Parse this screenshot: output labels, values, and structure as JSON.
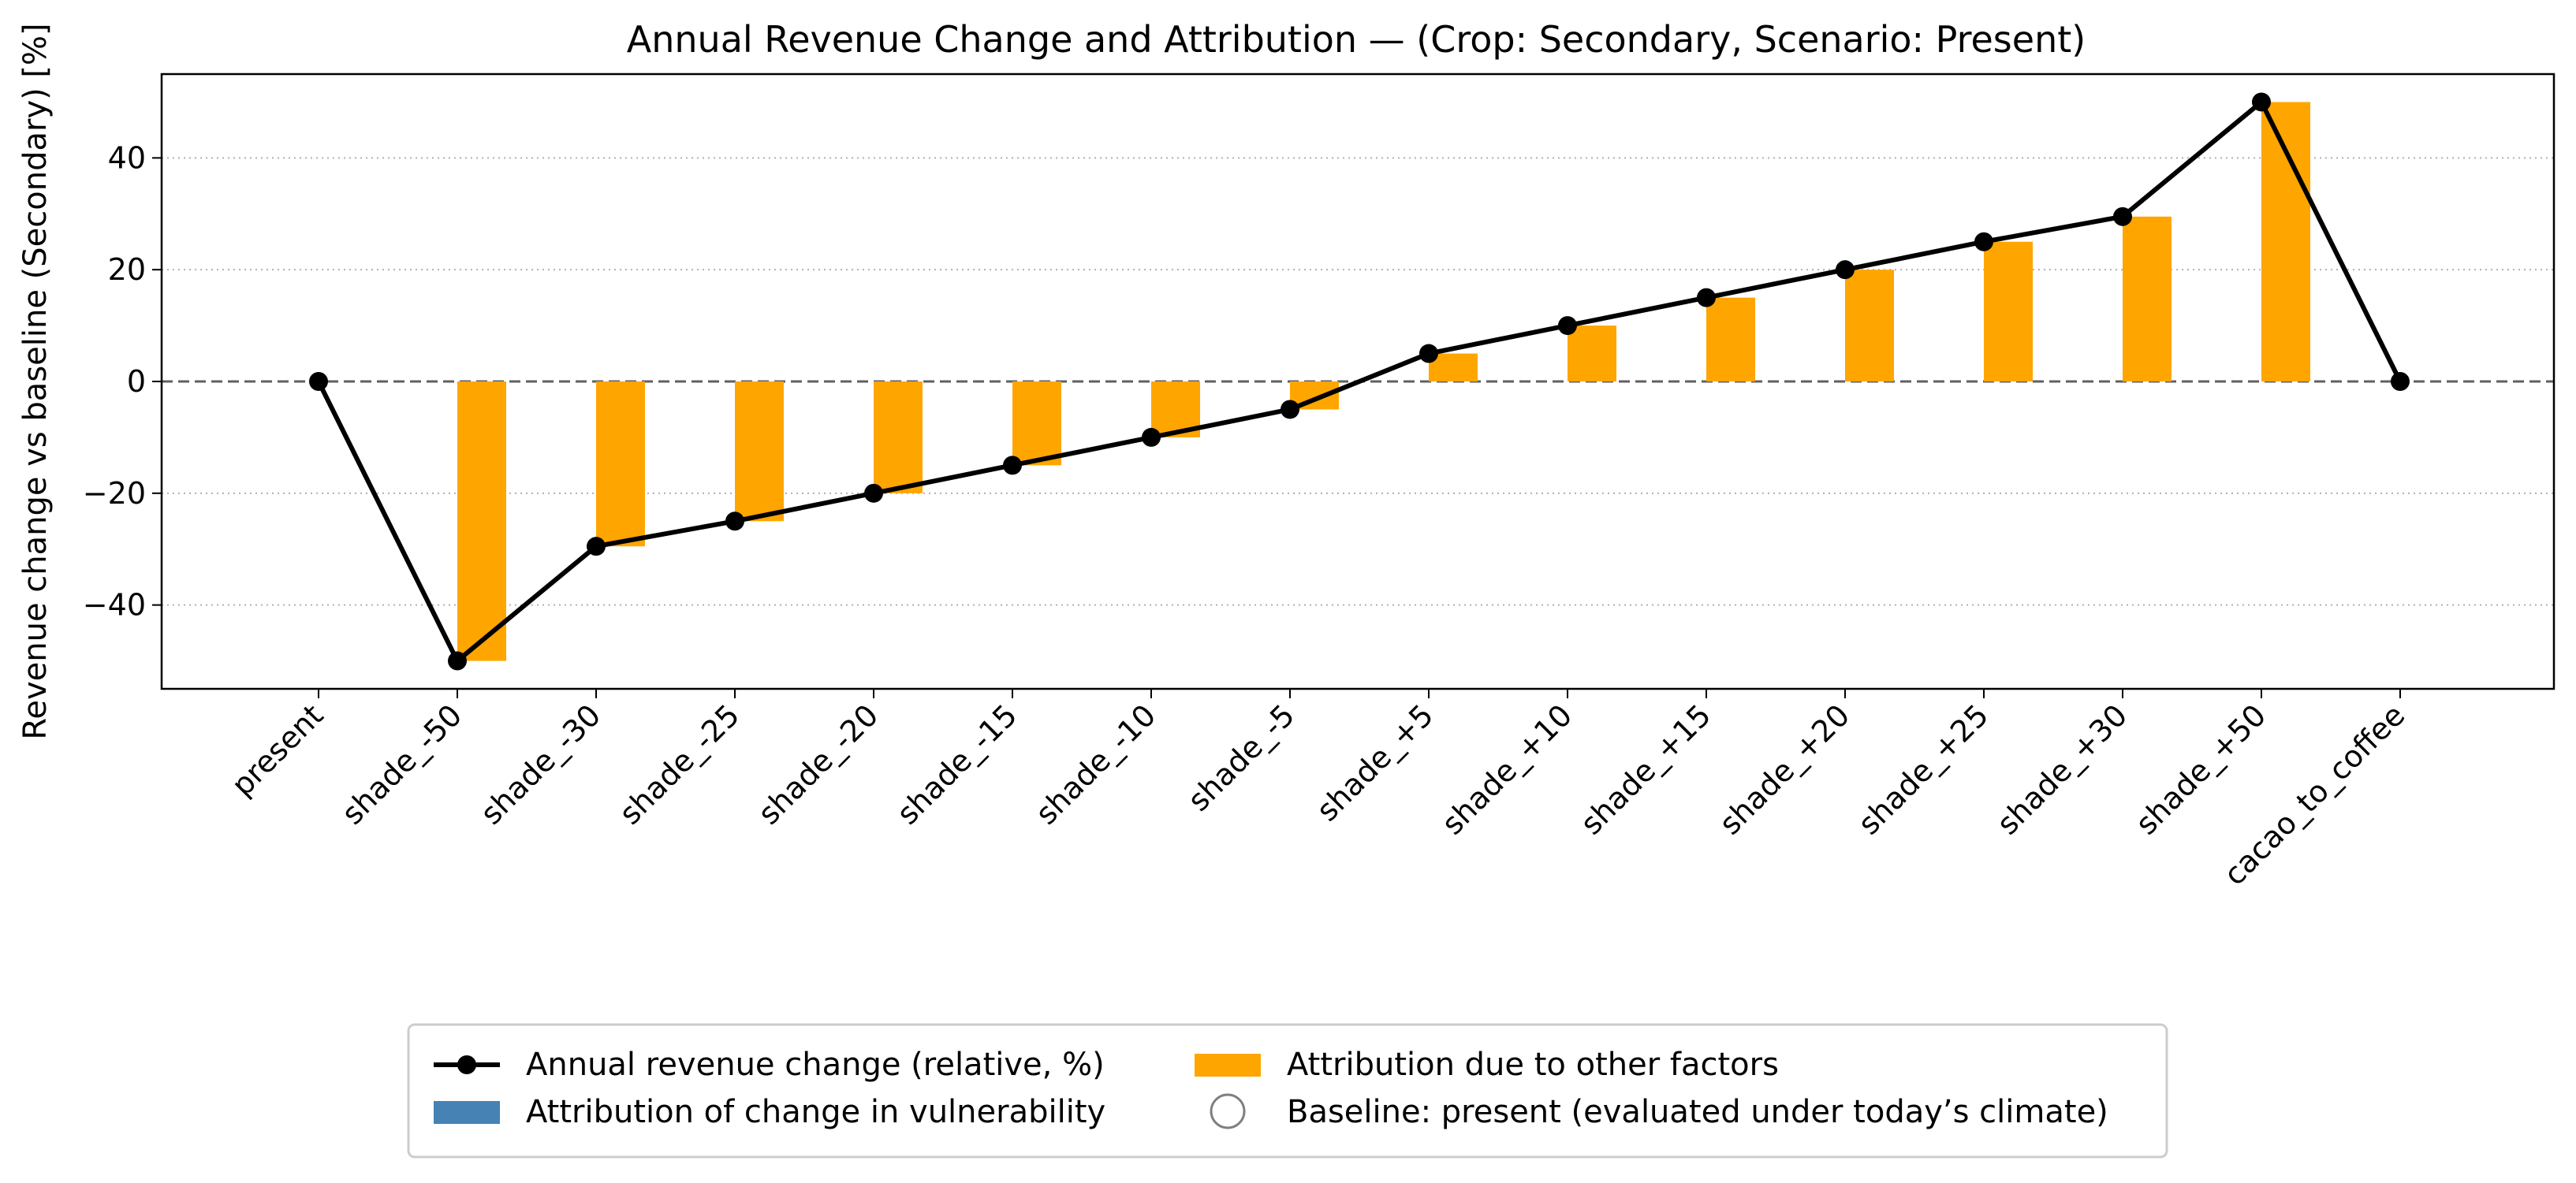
{
  "chart_data": {
    "type": "bar",
    "title": "Annual Revenue Change and Attribution — (Crop: Secondary, Scenario: Present)",
    "xlabel": "",
    "ylabel": "Revenue change vs baseline (Secondary) [%]",
    "categories": [
      "present",
      "shade_-50",
      "shade_-30",
      "shade_-25",
      "shade_-20",
      "shade_-15",
      "shade_-10",
      "shade_-5",
      "shade_+5",
      "shade_+10",
      "shade_+15",
      "shade_+20",
      "shade_+25",
      "shade_+30",
      "shade_+50",
      "cacao_to_coffee"
    ],
    "series": [
      {
        "name": "Annual revenue change (relative, %)",
        "kind": "line",
        "color": "#000000",
        "values": [
          0,
          -50,
          -29.5,
          -25,
          -20,
          -15,
          -10,
          -5,
          5,
          10,
          15,
          20,
          25,
          29.5,
          50,
          0
        ]
      },
      {
        "name": "Attribution of change in vulnerability",
        "kind": "bar",
        "color": "#4682B4",
        "values": [
          0,
          0,
          0,
          0,
          0,
          0,
          0,
          0,
          0,
          0,
          0,
          0,
          0,
          0,
          0,
          0
        ]
      },
      {
        "name": "Attribution due to other factors",
        "kind": "bar",
        "color": "#FFA500",
        "values": [
          0,
          -50,
          -29.5,
          -25,
          -20,
          -15,
          -10,
          -5,
          5,
          10,
          15,
          20,
          25,
          29.5,
          50,
          0
        ]
      }
    ],
    "baseline_legend": "Baseline: present (evaluated under today’s climate)",
    "yticks": [
      -40,
      -20,
      0,
      20,
      40
    ],
    "ylim": [
      -55,
      55
    ],
    "grid": "y-dotted",
    "zero_line": "dashed",
    "legend_position": "bottom-center"
  }
}
